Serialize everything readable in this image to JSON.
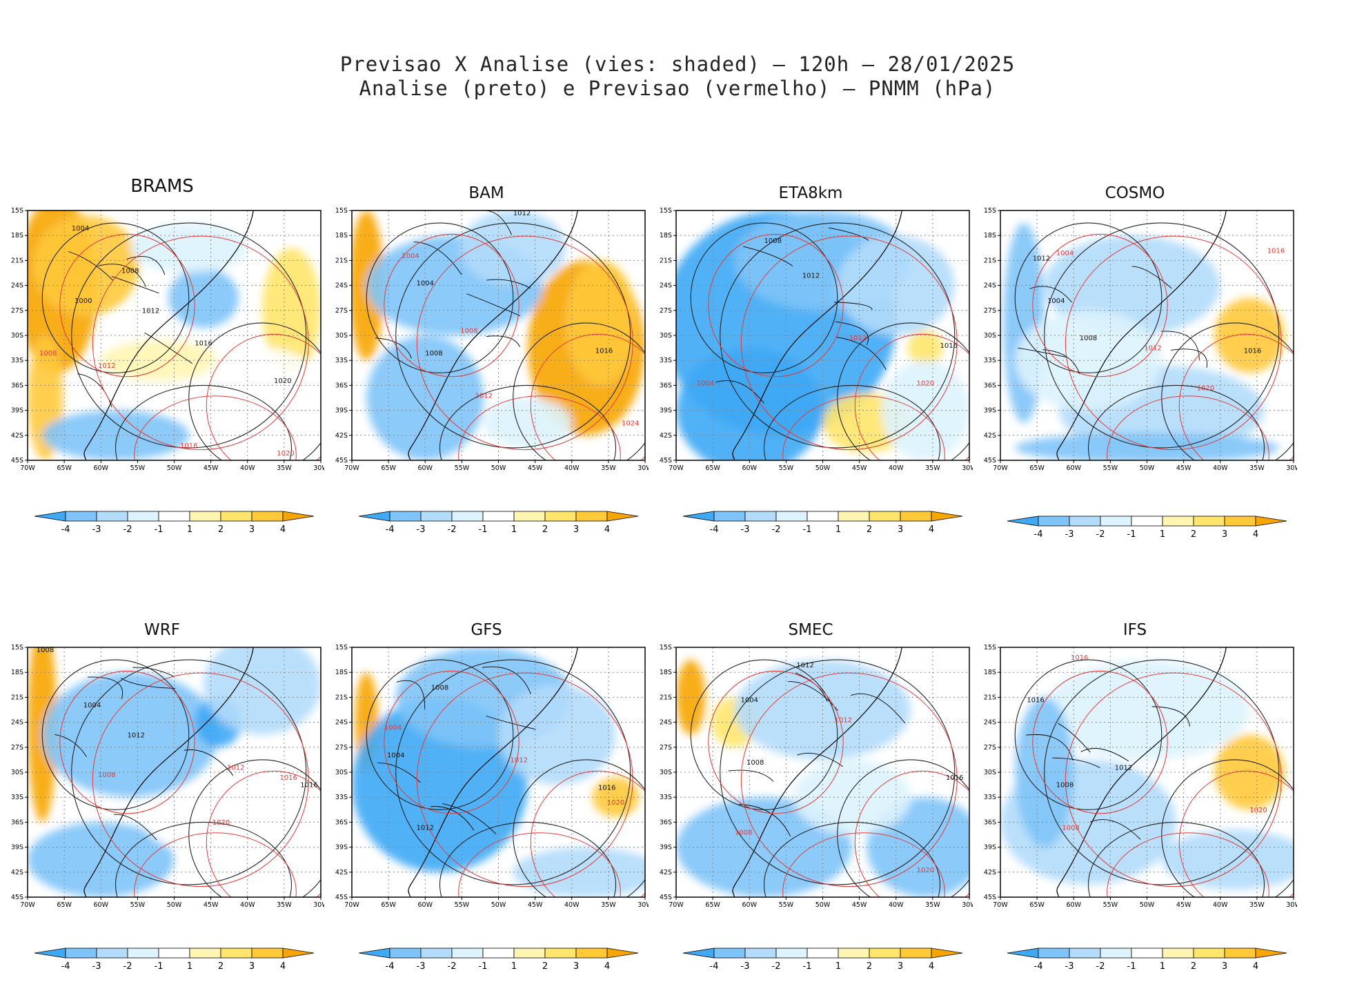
{
  "title": {
    "line1": "Previsao X Analise (vies: shaded) – 120h – 28/01/2025",
    "line2": "Analise (preto) e Previsao (vermelho) – PNMM (hPa)"
  },
  "axes": {
    "lat_labels": [
      "15S",
      "18S",
      "21S",
      "24S",
      "27S",
      "30S",
      "33S",
      "36S",
      "39S",
      "42S",
      "45S"
    ],
    "lon_labels": [
      "70W",
      "65W",
      "60W",
      "55W",
      "50W",
      "45W",
      "40W",
      "35W",
      "30W"
    ]
  },
  "colorbar": {
    "ticks": [
      "-4",
      "-3",
      "-2",
      "-1",
      "1",
      "2",
      "3",
      "4"
    ],
    "colors": [
      "#3fa9f5",
      "#7fc4f8",
      "#b3dcfb",
      "#ddf3fd",
      "#ffffff",
      "#fff5b3",
      "#ffe56b",
      "#ffc93a",
      "#f7a500"
    ]
  },
  "panels": [
    {
      "name": "BRAMS",
      "contours": [
        {
          "label": "1004",
          "c": "k"
        },
        {
          "label": "1008",
          "c": "k"
        },
        {
          "label": "1012",
          "c": "k"
        },
        {
          "label": "1000",
          "c": "k"
        },
        {
          "label": "1016",
          "c": "k"
        },
        {
          "label": "1020",
          "c": "k"
        },
        {
          "label": "1008",
          "c": "r"
        },
        {
          "label": "1012",
          "c": "r"
        },
        {
          "label": "1016",
          "c": "r"
        },
        {
          "label": "1020",
          "c": "r"
        }
      ]
    },
    {
      "name": "BAM",
      "contours": [
        {
          "label": "1012",
          "c": "k"
        },
        {
          "label": "1004",
          "c": "k"
        },
        {
          "label": "1008",
          "c": "k"
        },
        {
          "label": "1016",
          "c": "k"
        },
        {
          "label": "1004",
          "c": "r"
        },
        {
          "label": "1008",
          "c": "r"
        },
        {
          "label": "1012",
          "c": "r"
        },
        {
          "label": "1024",
          "c": "r"
        }
      ]
    },
    {
      "name": "ETA8km",
      "contours": [
        {
          "label": "1008",
          "c": "k"
        },
        {
          "label": "1012",
          "c": "k"
        },
        {
          "label": "1016",
          "c": "k"
        },
        {
          "label": "1004",
          "c": "r"
        },
        {
          "label": "1012",
          "c": "r"
        },
        {
          "label": "1020",
          "c": "r"
        }
      ]
    },
    {
      "name": "COSMO",
      "contours": [
        {
          "label": "1012",
          "c": "k"
        },
        {
          "label": "1004",
          "c": "k"
        },
        {
          "label": "1008",
          "c": "k"
        },
        {
          "label": "1016",
          "c": "k"
        },
        {
          "label": "1016",
          "c": "r"
        },
        {
          "label": "1012",
          "c": "r"
        },
        {
          "label": "1020",
          "c": "r"
        },
        {
          "label": "1004",
          "c": "r"
        }
      ]
    },
    {
      "name": "WRF",
      "contours": [
        {
          "label": "1008",
          "c": "k"
        },
        {
          "label": "1004",
          "c": "k"
        },
        {
          "label": "1012",
          "c": "k"
        },
        {
          "label": "1016",
          "c": "k"
        },
        {
          "label": "1008",
          "c": "r"
        },
        {
          "label": "1012",
          "c": "r"
        },
        {
          "label": "1016",
          "c": "r"
        },
        {
          "label": "1020",
          "c": "r"
        }
      ]
    },
    {
      "name": "GFS",
      "contours": [
        {
          "label": "1008",
          "c": "k"
        },
        {
          "label": "1004",
          "c": "k"
        },
        {
          "label": "1012",
          "c": "k"
        },
        {
          "label": "1016",
          "c": "k"
        },
        {
          "label": "1004",
          "c": "r"
        },
        {
          "label": "1012",
          "c": "r"
        },
        {
          "label": "1020",
          "c": "r"
        }
      ]
    },
    {
      "name": "SMEC",
      "contours": [
        {
          "label": "1012",
          "c": "k"
        },
        {
          "label": "1004",
          "c": "k"
        },
        {
          "label": "1008",
          "c": "k"
        },
        {
          "label": "1016",
          "c": "k"
        },
        {
          "label": "1008",
          "c": "r"
        },
        {
          "label": "1012",
          "c": "r"
        },
        {
          "label": "1020",
          "c": "r"
        }
      ]
    },
    {
      "name": "IFS",
      "contours": [
        {
          "label": "1016",
          "c": "k"
        },
        {
          "label": "1012",
          "c": "k"
        },
        {
          "label": "1008",
          "c": "k"
        },
        {
          "label": "1008",
          "c": "r"
        },
        {
          "label": "1016",
          "c": "r"
        },
        {
          "label": "1020",
          "c": "r"
        }
      ]
    }
  ]
}
